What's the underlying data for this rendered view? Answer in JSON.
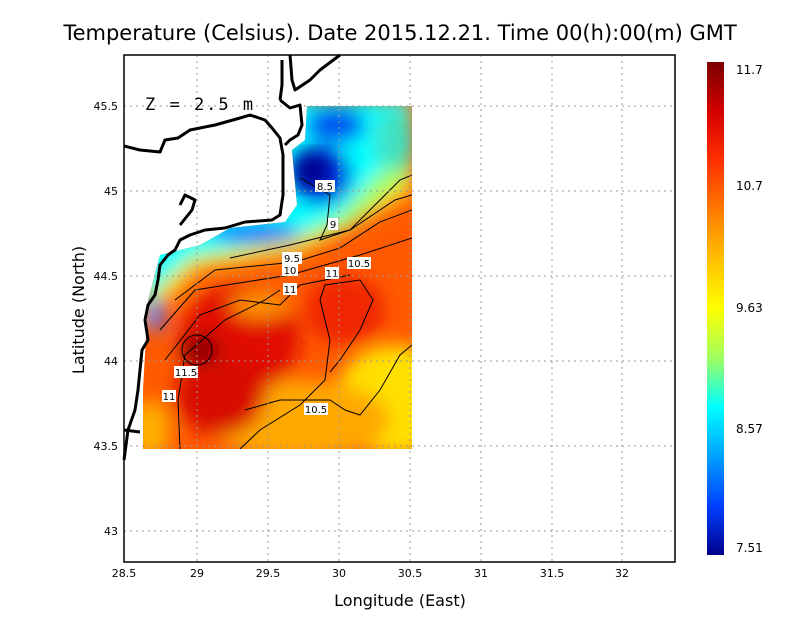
{
  "title": "Temperature (Celsius). Date 2015.12.21. Time 00(h):00(m)  GMT",
  "depth_label": "Z  =  2.5  m",
  "x_axis": {
    "label": "Longitude (East)",
    "ticks": [
      "28.5",
      "29",
      "29.5",
      "30",
      "30.5",
      "31",
      "31.5",
      "32"
    ]
  },
  "y_axis": {
    "label": "Latitude (North)",
    "ticks": [
      "45.5",
      "45",
      "44.5",
      "44",
      "43.5",
      "43"
    ]
  },
  "contour_labels": [
    "8.5",
    "9",
    "9.5",
    "10",
    "10.5",
    "11",
    "11",
    "11.5",
    "11",
    "10.5"
  ],
  "colorbar": {
    "labels": [
      "11.7",
      "10.7",
      "9.63",
      "8.57",
      "7.51"
    ],
    "min": 7.51,
    "max": 11.7,
    "colors": [
      "#7a0000",
      "#d40000",
      "#ff3000",
      "#ff7a00",
      "#ffc000",
      "#ffff00",
      "#a0ff60",
      "#00ffff",
      "#00a0ff",
      "#0040ff",
      "#00008c"
    ]
  }
}
